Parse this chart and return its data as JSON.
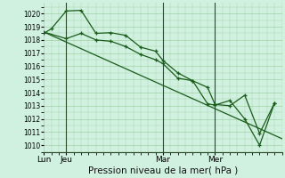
{
  "background_color": "#d0f0e0",
  "grid_color": "#90c890",
  "line_color": "#1a5c1a",
  "xlabel": "Pression niveau de la mer( hPa )",
  "xlabel_fontsize": 7.5,
  "ylim": [
    1009.5,
    1020.8
  ],
  "yticks": [
    1010,
    1011,
    1012,
    1013,
    1014,
    1015,
    1016,
    1017,
    1018,
    1019,
    1020
  ],
  "ytick_fontsize": 5.5,
  "xtick_fontsize": 6.5,
  "xtick_labels": [
    "Lun",
    "Jeu",
    "Mar",
    "Mer"
  ],
  "xtick_positions": [
    0,
    3,
    16,
    23
  ],
  "vline_positions": [
    3,
    16,
    23
  ],
  "xlim": [
    0,
    32
  ],
  "line1_x": [
    0,
    32
  ],
  "line1_y": [
    1018.6,
    1010.5
  ],
  "line2_x": [
    0,
    1,
    3,
    5,
    7,
    9,
    11,
    13,
    15,
    16,
    18,
    20,
    22,
    23,
    25,
    27,
    29,
    31
  ],
  "line2_y": [
    1018.5,
    1018.85,
    1020.2,
    1020.25,
    1018.5,
    1018.55,
    1018.35,
    1017.45,
    1017.15,
    1016.45,
    1015.5,
    1014.9,
    1013.15,
    1013.05,
    1013.4,
    1012.0,
    1010.0,
    1013.2
  ],
  "line3_x": [
    0,
    3,
    5,
    7,
    9,
    11,
    13,
    15,
    16,
    18,
    20,
    22,
    23,
    25,
    27,
    29,
    31
  ],
  "line3_y": [
    1018.6,
    1018.1,
    1018.5,
    1018.0,
    1017.9,
    1017.5,
    1016.9,
    1016.5,
    1016.2,
    1015.1,
    1014.9,
    1014.4,
    1013.1,
    1013.0,
    1013.8,
    1010.9,
    1013.2
  ]
}
